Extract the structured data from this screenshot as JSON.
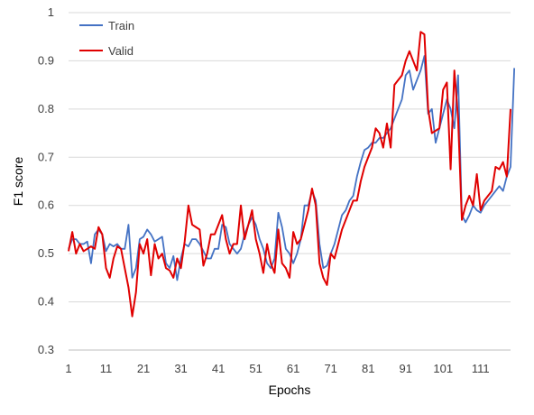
{
  "chart_data": {
    "type": "line",
    "xlabel": "Epochs",
    "ylabel": "F1 score",
    "xlim": [
      1,
      119
    ],
    "ylim": [
      0.3,
      1
    ],
    "x_ticks": [
      1,
      11,
      21,
      31,
      41,
      51,
      61,
      71,
      81,
      91,
      101,
      111
    ],
    "x_tick_labels": [
      "1",
      "11",
      "21",
      "31",
      "41",
      "51",
      "61",
      "71",
      "81",
      "91",
      "101",
      "111"
    ],
    "y_ticks": [
      0.3,
      0.4,
      0.5,
      0.6,
      0.7,
      0.8,
      0.9,
      1.0
    ],
    "y_tick_labels": [
      "0.3",
      "0.4",
      "0.5",
      "0.6",
      "0.7",
      "0.8",
      "0.9",
      "1"
    ],
    "grid": "horizontal",
    "legend_position": "top-left",
    "series": [
      {
        "name": "Train",
        "color": "#4472c4",
        "values": [
          0.51,
          0.53,
          0.53,
          0.52,
          0.52,
          0.525,
          0.48,
          0.54,
          0.55,
          0.54,
          0.505,
          0.52,
          0.515,
          0.52,
          0.51,
          0.51,
          0.56,
          0.45,
          0.47,
          0.53,
          0.535,
          0.55,
          0.54,
          0.525,
          0.53,
          0.535,
          0.48,
          0.47,
          0.495,
          0.445,
          0.49,
          0.52,
          0.515,
          0.53,
          0.53,
          0.52,
          0.505,
          0.49,
          0.49,
          0.51,
          0.51,
          0.56,
          0.555,
          0.52,
          0.51,
          0.5,
          0.51,
          0.54,
          0.56,
          0.575,
          0.56,
          0.53,
          0.51,
          0.48,
          0.47,
          0.49,
          0.585,
          0.555,
          0.51,
          0.5,
          0.48,
          0.5,
          0.53,
          0.6,
          0.6,
          0.63,
          0.61,
          0.52,
          0.47,
          0.475,
          0.5,
          0.52,
          0.55,
          0.58,
          0.59,
          0.61,
          0.62,
          0.66,
          0.69,
          0.715,
          0.72,
          0.73,
          0.73,
          0.74,
          0.74,
          0.75,
          0.76,
          0.78,
          0.8,
          0.82,
          0.87,
          0.88,
          0.84,
          0.86,
          0.88,
          0.91,
          0.79,
          0.8,
          0.73,
          0.76,
          0.79,
          0.82,
          0.8,
          0.76,
          0.87,
          0.58,
          0.565,
          0.58,
          0.6,
          0.59,
          0.585,
          0.6,
          0.61,
          0.62,
          0.63,
          0.64,
          0.63,
          0.66,
          0.68,
          0.885
        ]
      },
      {
        "name": "Valid",
        "color": "#e00000",
        "values": [
          0.505,
          0.545,
          0.5,
          0.52,
          0.505,
          0.51,
          0.515,
          0.51,
          0.555,
          0.54,
          0.47,
          0.45,
          0.49,
          0.515,
          0.51,
          0.47,
          0.43,
          0.37,
          0.42,
          0.52,
          0.5,
          0.53,
          0.455,
          0.52,
          0.49,
          0.5,
          0.47,
          0.465,
          0.45,
          0.49,
          0.47,
          0.525,
          0.6,
          0.56,
          0.555,
          0.55,
          0.475,
          0.5,
          0.54,
          0.54,
          0.56,
          0.58,
          0.53,
          0.5,
          0.52,
          0.52,
          0.6,
          0.53,
          0.56,
          0.59,
          0.53,
          0.5,
          0.46,
          0.52,
          0.48,
          0.46,
          0.55,
          0.48,
          0.47,
          0.45,
          0.545,
          0.52,
          0.53,
          0.56,
          0.59,
          0.635,
          0.6,
          0.48,
          0.45,
          0.435,
          0.5,
          0.49,
          0.52,
          0.55,
          0.57,
          0.59,
          0.61,
          0.61,
          0.65,
          0.68,
          0.7,
          0.72,
          0.76,
          0.75,
          0.72,
          0.77,
          0.72,
          0.85,
          0.86,
          0.87,
          0.9,
          0.92,
          0.9,
          0.88,
          0.96,
          0.955,
          0.8,
          0.75,
          0.755,
          0.76,
          0.84,
          0.855,
          0.675,
          0.88,
          0.78,
          0.57,
          0.6,
          0.62,
          0.6,
          0.665,
          0.59,
          0.61,
          0.62,
          0.63,
          0.68,
          0.675,
          0.69,
          0.66,
          0.8
        ]
      }
    ]
  }
}
